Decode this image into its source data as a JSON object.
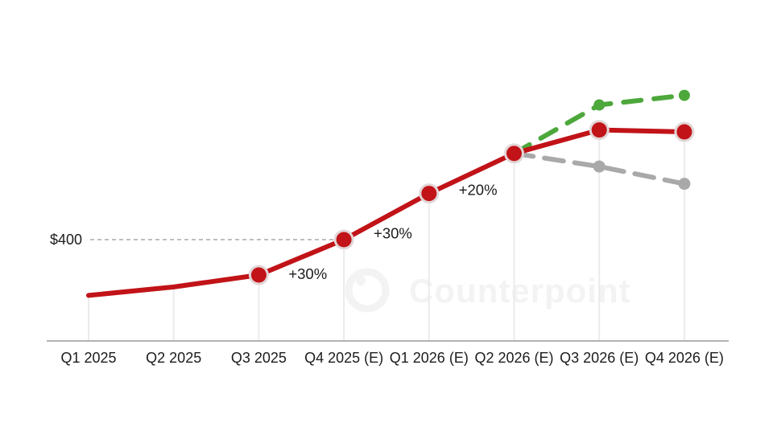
{
  "page": {
    "background": "#ffffff"
  },
  "watermark": {
    "brand": "Counterpoint",
    "logo_icon": "counterpoint-ring-logo",
    "color": "#f3f3f3"
  },
  "colors": {
    "red": "#c11318",
    "green": "#4da83c",
    "gray": "#a9a9a9",
    "grid": "#ebebeb",
    "axis_line": "#b3b3b3",
    "text": "#1c1c1c",
    "ref_line": "#a9a9a9",
    "marker_halo": "#e2d6d6"
  },
  "chart_data": {
    "type": "line",
    "title": "",
    "categories": [
      "Q1 2025",
      "Q2 2025",
      "Q3 2025",
      "Q4 2025 (E)",
      "Q1 2026 (E)",
      "Q2 2026 (E)",
      "Q3 2026 (E)",
      "Q4 2026 (E)"
    ],
    "y_axis": {
      "visible": false,
      "unit": "$",
      "approx_range": [
        140,
        800
      ],
      "reference_line": {
        "label": "$400",
        "value": 400,
        "style": "dashed"
      }
    },
    "x_axis": {
      "baseline": true,
      "gridlines": "vertical-drop-lines"
    },
    "series": [
      {
        "name": "price-actual-and-forecast",
        "color_key": "red",
        "style": "solid",
        "values": [
          255,
          277,
          308,
          400,
          520,
          624,
          685,
          680
        ],
        "marker_indices": [
          2,
          3,
          4,
          5,
          6,
          7
        ]
      },
      {
        "name": "upside-scenario",
        "color_key": "green",
        "style": "dashed",
        "values": [
          null,
          null,
          null,
          null,
          null,
          624,
          750,
          775
        ],
        "marker_indices": [
          6,
          7
        ]
      },
      {
        "name": "downside-scenario",
        "color_key": "gray",
        "style": "dashed",
        "values": [
          null,
          null,
          null,
          null,
          null,
          624,
          590,
          545
        ],
        "marker_indices": [
          6,
          7
        ]
      }
    ],
    "annotations": [
      {
        "text": "+30%",
        "between_indices": [
          2,
          3
        ]
      },
      {
        "text": "+30%",
        "between_indices": [
          3,
          4
        ]
      },
      {
        "text": "+20%",
        "between_indices": [
          4,
          5
        ]
      }
    ],
    "legend": {
      "visible": false
    }
  }
}
